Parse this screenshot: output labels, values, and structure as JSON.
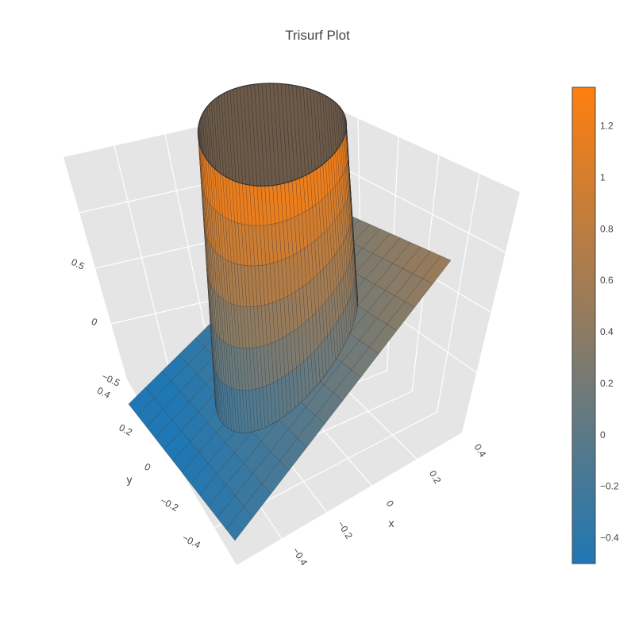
{
  "chart_data": {
    "type": "surface",
    "title": "Trisurf Plot",
    "xlabel": "x",
    "ylabel": "y",
    "zlabel": "",
    "x_ticks": [
      "−0.4",
      "−0.2",
      "0",
      "0.2",
      "0.4"
    ],
    "y_ticks": [
      "−0.4",
      "−0.2",
      "0",
      "0.2",
      "0.4"
    ],
    "z_ticks": [
      "−0.5",
      "0",
      "0.5"
    ],
    "colorbar": {
      "ticks": [
        "−0.4",
        "−0.2",
        "0",
        "0.2",
        "0.4",
        "0.6",
        "0.8",
        "1",
        "1.2"
      ],
      "tick_values": [
        -0.4,
        -0.2,
        0,
        0.2,
        0.4,
        0.6,
        0.8,
        1,
        1.2
      ],
      "range": [
        -0.5,
        1.35
      ],
      "colorscale": [
        "#1f77b4",
        "#ff7f0e"
      ]
    },
    "xlim": [
      -0.5,
      0.5
    ],
    "ylim": [
      -0.5,
      0.5
    ],
    "grid": true,
    "surface_description": "plane with a cylindrical wall of radius ~0.3 rising from the centre"
  }
}
